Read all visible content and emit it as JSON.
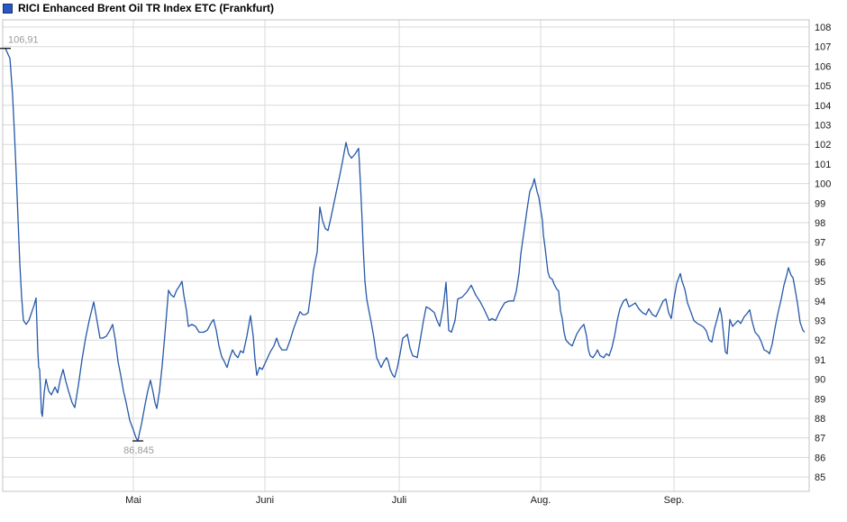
{
  "title": {
    "text": "RICI Enhanced Brent Oil TR Index ETC (Frankfurt)"
  },
  "legend": {
    "swatch_fill": "#2a57c0",
    "swatch_border": "#14336e"
  },
  "colors": {
    "line": "#2558a8",
    "grid": "#d9d9d9",
    "plot_border": "#c4c4c4",
    "annotation_text": "#9b9b9b",
    "annotation_tick": "#222222",
    "tick_label": "#1a1a1a",
    "background": "#ffffff"
  },
  "annotations": {
    "high": {
      "label": "106,91",
      "value": 106.91,
      "x": 6
    },
    "low": {
      "label": "86,845",
      "value": 86.845,
      "x": 153
    }
  },
  "chart_data": {
    "type": "line",
    "title": "RICI Enhanced Brent Oil TR Index ETC (Frankfurt)",
    "xlabel": "",
    "ylabel": "",
    "ylim": [
      84.6,
      108.4
    ],
    "grid": true,
    "legend_position": "top-left-title",
    "y_axis": {
      "side": "right",
      "ticks": [
        85,
        86,
        87,
        88,
        89,
        90,
        91,
        92,
        93,
        94,
        95,
        96,
        97,
        98,
        99,
        100,
        101,
        102,
        103,
        104,
        105,
        106,
        107,
        108
      ]
    },
    "x_axis": {
      "tick_labels": [
        "Mai",
        "Juni",
        "Juli",
        "Aug.",
        "Sep."
      ],
      "tick_x": [
        148,
        294,
        443,
        600,
        748
      ]
    },
    "series": [
      {
        "name": "RICI Enhanced Brent Oil TR Index ETC (Frankfurt)",
        "points": [
          [
            6,
            106.91
          ],
          [
            9,
            106.6
          ],
          [
            11,
            106.4
          ],
          [
            12,
            105.8
          ],
          [
            14,
            104.5
          ],
          [
            16,
            102.6
          ],
          [
            18,
            100.5
          ],
          [
            20,
            98.2
          ],
          [
            22,
            95.9
          ],
          [
            24,
            94.2
          ],
          [
            26,
            93.0
          ],
          [
            29,
            92.8
          ],
          [
            32,
            93.0
          ],
          [
            35,
            93.4
          ],
          [
            38,
            93.8
          ],
          [
            40,
            94.15
          ],
          [
            42,
            91.4
          ],
          [
            43,
            90.6
          ],
          [
            44,
            90.5
          ],
          [
            46,
            88.3
          ],
          [
            47,
            88.1
          ],
          [
            49,
            89.3
          ],
          [
            51,
            90.0
          ],
          [
            54,
            89.4
          ],
          [
            57,
            89.2
          ],
          [
            61,
            89.6
          ],
          [
            64,
            89.3
          ],
          [
            67,
            90.0
          ],
          [
            70,
            90.5
          ],
          [
            73,
            89.9
          ],
          [
            76,
            89.4
          ],
          [
            80,
            88.8
          ],
          [
            83,
            88.55
          ],
          [
            87,
            89.7
          ],
          [
            91,
            91.0
          ],
          [
            95,
            92.1
          ],
          [
            99,
            93.0
          ],
          [
            104,
            93.95
          ],
          [
            108,
            92.9
          ],
          [
            111,
            92.1
          ],
          [
            114,
            92.1
          ],
          [
            118,
            92.2
          ],
          [
            122,
            92.5
          ],
          [
            125,
            92.8
          ],
          [
            128,
            92.0
          ],
          [
            131,
            90.9
          ],
          [
            134,
            90.2
          ],
          [
            137,
            89.4
          ],
          [
            140,
            88.8
          ],
          [
            144,
            87.9
          ],
          [
            148,
            87.4
          ],
          [
            151,
            87.0
          ],
          [
            153,
            86.845
          ],
          [
            155,
            87.3
          ],
          [
            157,
            87.7
          ],
          [
            161,
            88.7
          ],
          [
            164,
            89.4
          ],
          [
            167,
            89.95
          ],
          [
            170,
            89.3
          ],
          [
            172,
            88.8
          ],
          [
            174,
            88.5
          ],
          [
            177,
            89.4
          ],
          [
            180,
            90.7
          ],
          [
            183,
            92.3
          ],
          [
            185,
            93.4
          ],
          [
            187,
            94.55
          ],
          [
            190,
            94.3
          ],
          [
            193,
            94.2
          ],
          [
            196,
            94.55
          ],
          [
            199,
            94.75
          ],
          [
            202,
            95.0
          ],
          [
            204,
            94.3
          ],
          [
            207,
            93.5
          ],
          [
            209,
            92.7
          ],
          [
            213,
            92.8
          ],
          [
            217,
            92.7
          ],
          [
            221,
            92.4
          ],
          [
            226,
            92.4
          ],
          [
            230,
            92.5
          ],
          [
            234,
            92.85
          ],
          [
            237,
            93.05
          ],
          [
            240,
            92.5
          ],
          [
            243,
            91.7
          ],
          [
            246,
            91.15
          ],
          [
            249,
            90.9
          ],
          [
            252,
            90.6
          ],
          [
            255,
            91.1
          ],
          [
            258,
            91.5
          ],
          [
            261,
            91.25
          ],
          [
            264,
            91.1
          ],
          [
            267,
            91.45
          ],
          [
            270,
            91.35
          ],
          [
            274,
            92.2
          ],
          [
            278,
            93.25
          ],
          [
            281,
            92.2
          ],
          [
            283,
            91.0
          ],
          [
            285,
            90.2
          ],
          [
            288,
            90.6
          ],
          [
            291,
            90.5
          ],
          [
            295,
            90.9
          ],
          [
            300,
            91.4
          ],
          [
            304,
            91.7
          ],
          [
            307,
            92.1
          ],
          [
            310,
            91.7
          ],
          [
            313,
            91.5
          ],
          [
            318,
            91.5
          ],
          [
            322,
            92.0
          ],
          [
            326,
            92.6
          ],
          [
            330,
            93.1
          ],
          [
            333,
            93.45
          ],
          [
            336,
            93.3
          ],
          [
            339,
            93.3
          ],
          [
            342,
            93.4
          ],
          [
            345,
            94.4
          ],
          [
            348,
            95.6
          ],
          [
            352,
            96.5
          ],
          [
            355,
            98.8
          ],
          [
            358,
            98.1
          ],
          [
            361,
            97.7
          ],
          [
            364,
            97.6
          ],
          [
            367,
            98.2
          ],
          [
            372,
            99.3
          ],
          [
            377,
            100.4
          ],
          [
            380,
            101.1
          ],
          [
            384,
            102.1
          ],
          [
            387,
            101.5
          ],
          [
            390,
            101.3
          ],
          [
            394,
            101.5
          ],
          [
            398,
            101.8
          ],
          [
            400,
            100.0
          ],
          [
            402,
            98.0
          ],
          [
            403,
            96.8
          ],
          [
            405,
            95.0
          ],
          [
            407,
            94.1
          ],
          [
            409,
            93.6
          ],
          [
            412,
            92.9
          ],
          [
            415,
            92.1
          ],
          [
            418,
            91.1
          ],
          [
            421,
            90.8
          ],
          [
            423,
            90.6
          ],
          [
            426,
            90.9
          ],
          [
            429,
            91.1
          ],
          [
            431,
            90.9
          ],
          [
            433,
            90.5
          ],
          [
            436,
            90.2
          ],
          [
            438,
            90.1
          ],
          [
            441,
            90.6
          ],
          [
            444,
            91.3
          ],
          [
            447,
            92.1
          ],
          [
            450,
            92.2
          ],
          [
            452,
            92.3
          ],
          [
            455,
            91.6
          ],
          [
            458,
            91.2
          ],
          [
            461,
            91.15
          ],
          [
            463,
            91.1
          ],
          [
            466,
            91.9
          ],
          [
            470,
            93.0
          ],
          [
            473,
            93.7
          ],
          [
            477,
            93.6
          ],
          [
            482,
            93.4
          ],
          [
            485,
            93.0
          ],
          [
            488,
            92.7
          ],
          [
            492,
            93.7
          ],
          [
            495,
            94.95
          ],
          [
            498,
            92.5
          ],
          [
            501,
            92.4
          ],
          [
            505,
            93.0
          ],
          [
            508,
            94.1
          ],
          [
            513,
            94.2
          ],
          [
            518,
            94.45
          ],
          [
            523,
            94.8
          ],
          [
            528,
            94.3
          ],
          [
            533,
            93.95
          ],
          [
            537,
            93.6
          ],
          [
            540,
            93.3
          ],
          [
            543,
            93.0
          ],
          [
            546,
            93.1
          ],
          [
            550,
            93.0
          ],
          [
            555,
            93.5
          ],
          [
            560,
            93.9
          ],
          [
            565,
            94.0
          ],
          [
            570,
            94.0
          ],
          [
            573,
            94.5
          ],
          [
            576,
            95.4
          ],
          [
            578,
            96.4
          ],
          [
            582,
            97.7
          ],
          [
            585,
            98.7
          ],
          [
            588,
            99.6
          ],
          [
            591,
            99.9
          ],
          [
            593,
            100.25
          ],
          [
            596,
            99.6
          ],
          [
            598,
            99.3
          ],
          [
            600,
            98.7
          ],
          [
            602,
            98.1
          ],
          [
            603,
            97.4
          ],
          [
            605,
            96.7
          ],
          [
            607,
            95.9
          ],
          [
            608,
            95.5
          ],
          [
            610,
            95.2
          ],
          [
            613,
            95.1
          ],
          [
            615,
            94.85
          ],
          [
            618,
            94.6
          ],
          [
            620,
            94.5
          ],
          [
            622,
            93.5
          ],
          [
            624,
            93.1
          ],
          [
            626,
            92.4
          ],
          [
            628,
            92.0
          ],
          [
            632,
            91.8
          ],
          [
            635,
            91.7
          ],
          [
            640,
            92.3
          ],
          [
            644,
            92.6
          ],
          [
            648,
            92.8
          ],
          [
            651,
            92.2
          ],
          [
            653,
            91.5
          ],
          [
            655,
            91.2
          ],
          [
            658,
            91.1
          ],
          [
            661,
            91.3
          ],
          [
            663,
            91.5
          ],
          [
            666,
            91.2
          ],
          [
            670,
            91.1
          ],
          [
            673,
            91.3
          ],
          [
            676,
            91.2
          ],
          [
            679,
            91.6
          ],
          [
            682,
            92.2
          ],
          [
            685,
            93.0
          ],
          [
            688,
            93.6
          ],
          [
            692,
            94.0
          ],
          [
            695,
            94.1
          ],
          [
            698,
            93.7
          ],
          [
            702,
            93.8
          ],
          [
            705,
            93.9
          ],
          [
            709,
            93.6
          ],
          [
            713,
            93.4
          ],
          [
            717,
            93.3
          ],
          [
            720,
            93.6
          ],
          [
            724,
            93.3
          ],
          [
            728,
            93.2
          ],
          [
            732,
            93.6
          ],
          [
            736,
            94.0
          ],
          [
            739,
            94.1
          ],
          [
            742,
            93.4
          ],
          [
            745,
            93.1
          ],
          [
            748,
            94.1
          ],
          [
            751,
            94.9
          ],
          [
            755,
            95.4
          ],
          [
            757,
            95.0
          ],
          [
            760,
            94.6
          ],
          [
            763,
            93.9
          ],
          [
            767,
            93.4
          ],
          [
            770,
            93.0
          ],
          [
            774,
            92.85
          ],
          [
            778,
            92.75
          ],
          [
            781,
            92.65
          ],
          [
            784,
            92.45
          ],
          [
            787,
            92.0
          ],
          [
            790,
            91.9
          ],
          [
            793,
            92.6
          ],
          [
            796,
            93.1
          ],
          [
            799,
            93.65
          ],
          [
            801,
            93.2
          ],
          [
            803,
            92.3
          ],
          [
            805,
            91.4
          ],
          [
            807,
            91.3
          ],
          [
            810,
            93.05
          ],
          [
            813,
            92.7
          ],
          [
            816,
            92.85
          ],
          [
            819,
            93.0
          ],
          [
            822,
            92.85
          ],
          [
            826,
            93.2
          ],
          [
            829,
            93.35
          ],
          [
            832,
            93.55
          ],
          [
            835,
            92.9
          ],
          [
            838,
            92.4
          ],
          [
            842,
            92.2
          ],
          [
            845,
            91.9
          ],
          [
            848,
            91.5
          ],
          [
            852,
            91.4
          ],
          [
            854,
            91.3
          ],
          [
            857,
            91.8
          ],
          [
            860,
            92.6
          ],
          [
            863,
            93.3
          ],
          [
            867,
            94.1
          ],
          [
            870,
            94.8
          ],
          [
            873,
            95.3
          ],
          [
            875,
            95.7
          ],
          [
            878,
            95.3
          ],
          [
            880,
            95.2
          ],
          [
            882,
            94.7
          ],
          [
            885,
            93.9
          ],
          [
            888,
            92.9
          ],
          [
            891,
            92.5
          ],
          [
            893,
            92.4
          ]
        ]
      }
    ]
  }
}
